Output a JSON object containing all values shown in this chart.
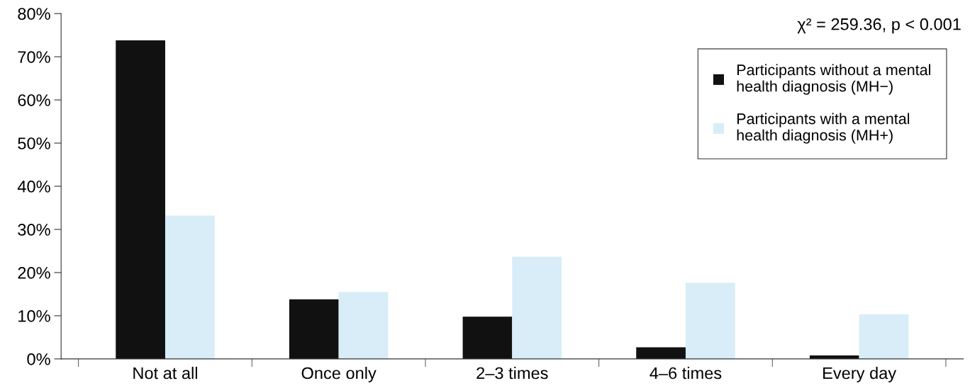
{
  "chart_data": {
    "type": "bar",
    "categories": [
      "Not at all",
      "Once only",
      "2–3 times",
      "4–6 times",
      "Every day"
    ],
    "series": [
      {
        "name": "Participants without a mental health diagnosis (MH−)",
        "color": "#111111",
        "values": [
          73.8,
          13.8,
          9.8,
          2.7,
          0.8
        ]
      },
      {
        "name": "Participants with a mental health diagnosis (MH+)",
        "color": "#d8edf7",
        "values": [
          33.2,
          15.5,
          23.7,
          17.6,
          10.3
        ]
      }
    ],
    "ylim": [
      0,
      80
    ],
    "yticks": [
      {
        "value": 0,
        "label": "0%"
      },
      {
        "value": 10,
        "label": "10%"
      },
      {
        "value": 20,
        "label": "20%"
      },
      {
        "value": 30,
        "label": "30%"
      },
      {
        "value": 40,
        "label": "40%"
      },
      {
        "value": 50,
        "label": "50%"
      },
      {
        "value": 60,
        "label": "60%"
      },
      {
        "value": 70,
        "label": "70%"
      },
      {
        "value": 80,
        "label": "80%"
      }
    ],
    "annotations": [
      "χ² = 259.36, p < 0.001"
    ],
    "legend": "top right",
    "grid": false
  }
}
